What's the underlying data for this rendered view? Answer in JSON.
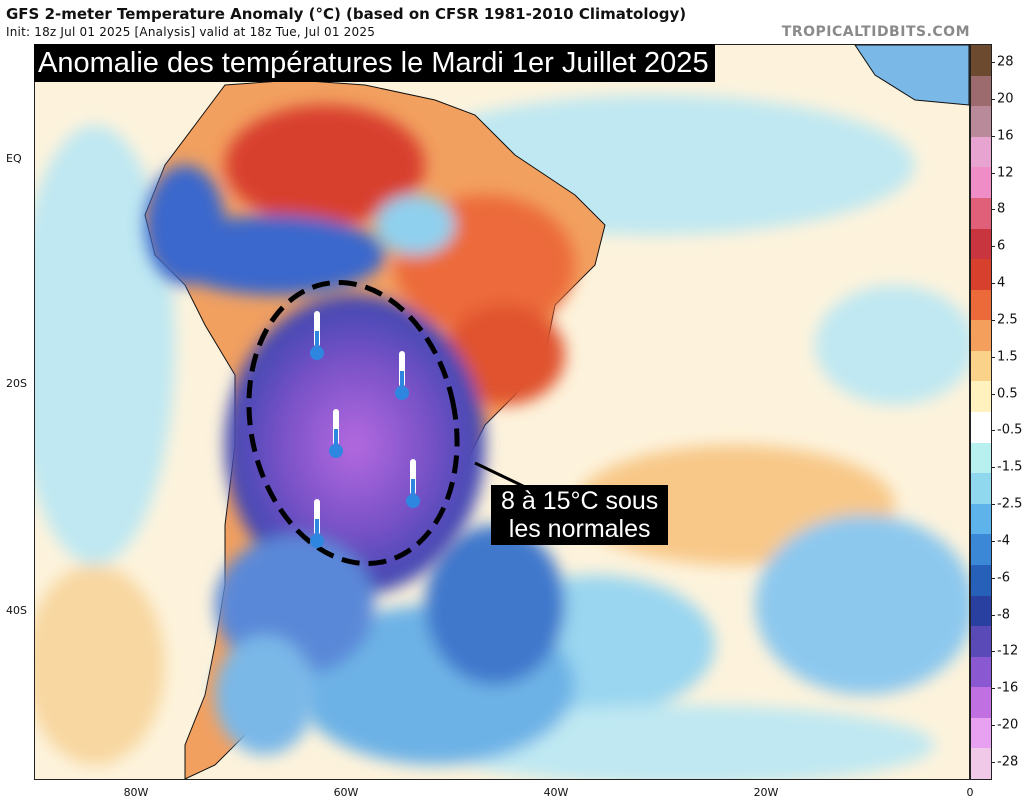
{
  "header": {
    "title": "GFS 2-meter Temperature Anomaly (°C) (based on CFSR 1981-2010 Climatology)",
    "init": "Init: 18z Jul 01 2025   [Analysis]   valid at 18z Tue, Jul 01 2025",
    "brand": "TROPICALTIDBITS.COM"
  },
  "banner": "Anomalie des températures le Mardi 1er Juillet 2025",
  "callout": {
    "line1": "8 à 15°C sous",
    "line2": "les normales"
  },
  "axes": {
    "lat_labels": [
      "EQ",
      "20S",
      "40S"
    ],
    "lon_labels": [
      "80W",
      "60W",
      "40W",
      "20W",
      "0"
    ]
  },
  "colorbar": {
    "labels": [
      "28",
      "20",
      "16",
      "12",
      "8",
      "6",
      "4",
      "2.5",
      "1.5",
      "0.5",
      "-0.5",
      "-1.5",
      "-2.5",
      "-4",
      "-6",
      "-8",
      "-12",
      "-16",
      "-20",
      "-28"
    ],
    "colors": [
      "#6b4a2f",
      "#9c6b6e",
      "#b88a9a",
      "#e8a4d0",
      "#ef8ec6",
      "#e0607a",
      "#c8353f",
      "#d8402e",
      "#ec6a3a",
      "#f4a05c",
      "#fbd28a",
      "#fff2bf",
      "#ffffff",
      "#b8f0f0",
      "#8fd8ee",
      "#5eb4ea",
      "#3a88d6",
      "#2660b8",
      "#2a40a0",
      "#5a4ab8",
      "#8a58d0",
      "#c070e0",
      "#e8a0f0",
      "#f0c8e8"
    ]
  },
  "icons": {
    "thermometer": "thermometer-cold-icon"
  }
}
